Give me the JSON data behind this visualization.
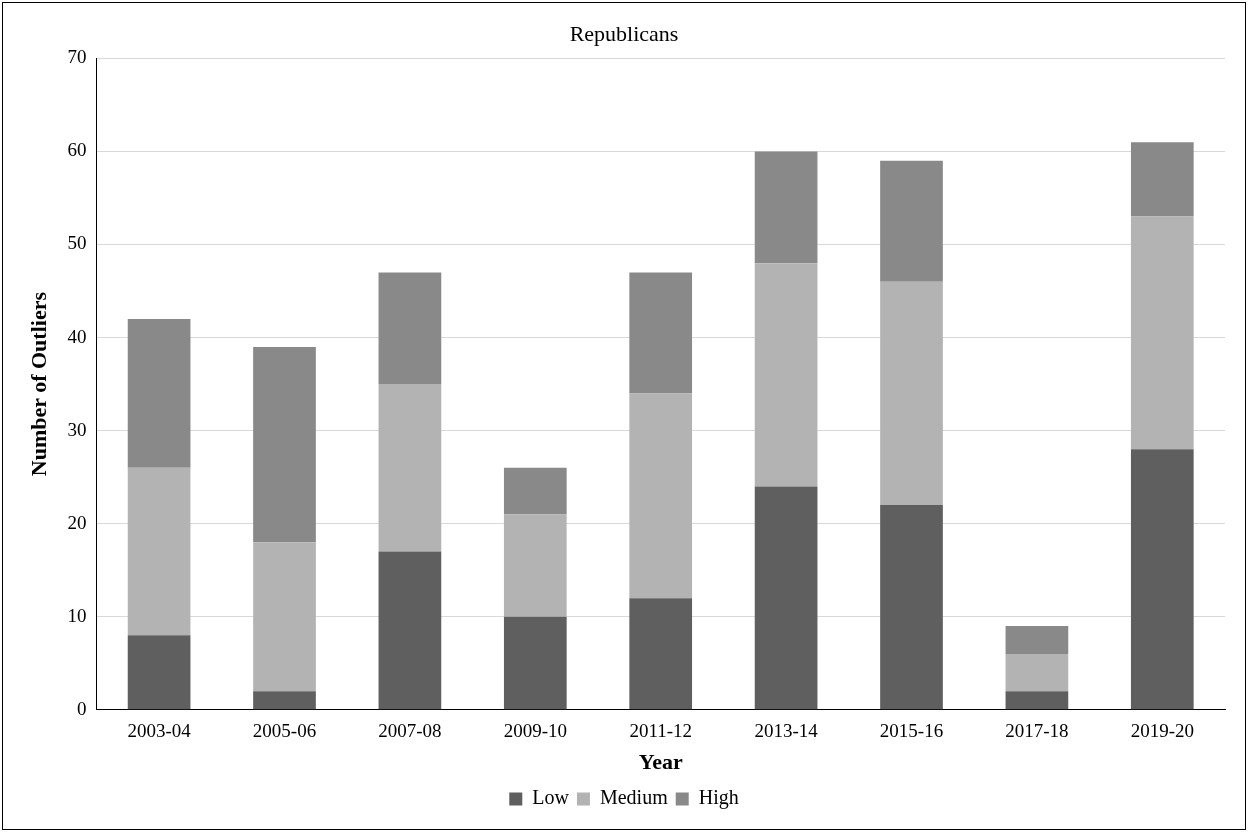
{
  "chart_data": {
    "type": "bar",
    "title": "Republicans",
    "xlabel": "Year",
    "ylabel": "Number of Outliers",
    "categories": [
      "2003-04",
      "2005-06",
      "2007-08",
      "2009-10",
      "2011-12",
      "2013-14",
      "2015-16",
      "2017-18",
      "2019-20"
    ],
    "series": [
      {
        "name": "Low",
        "color": "#5f5f5f",
        "values": [
          8,
          2,
          17,
          10,
          12,
          24,
          22,
          2,
          28
        ]
      },
      {
        "name": "Medium",
        "color": "#b3b3b3",
        "values": [
          18,
          16,
          18,
          11,
          22,
          24,
          24,
          4,
          25
        ]
      },
      {
        "name": "High",
        "color": "#898989",
        "values": [
          16,
          21,
          12,
          5,
          13,
          12,
          13,
          3,
          8
        ]
      }
    ],
    "stacked": true,
    "ylim": [
      0,
      70
    ],
    "yticks": [
      0,
      10,
      20,
      30,
      40,
      50,
      60,
      70
    ],
    "grid": "y",
    "legend": "bottom"
  }
}
